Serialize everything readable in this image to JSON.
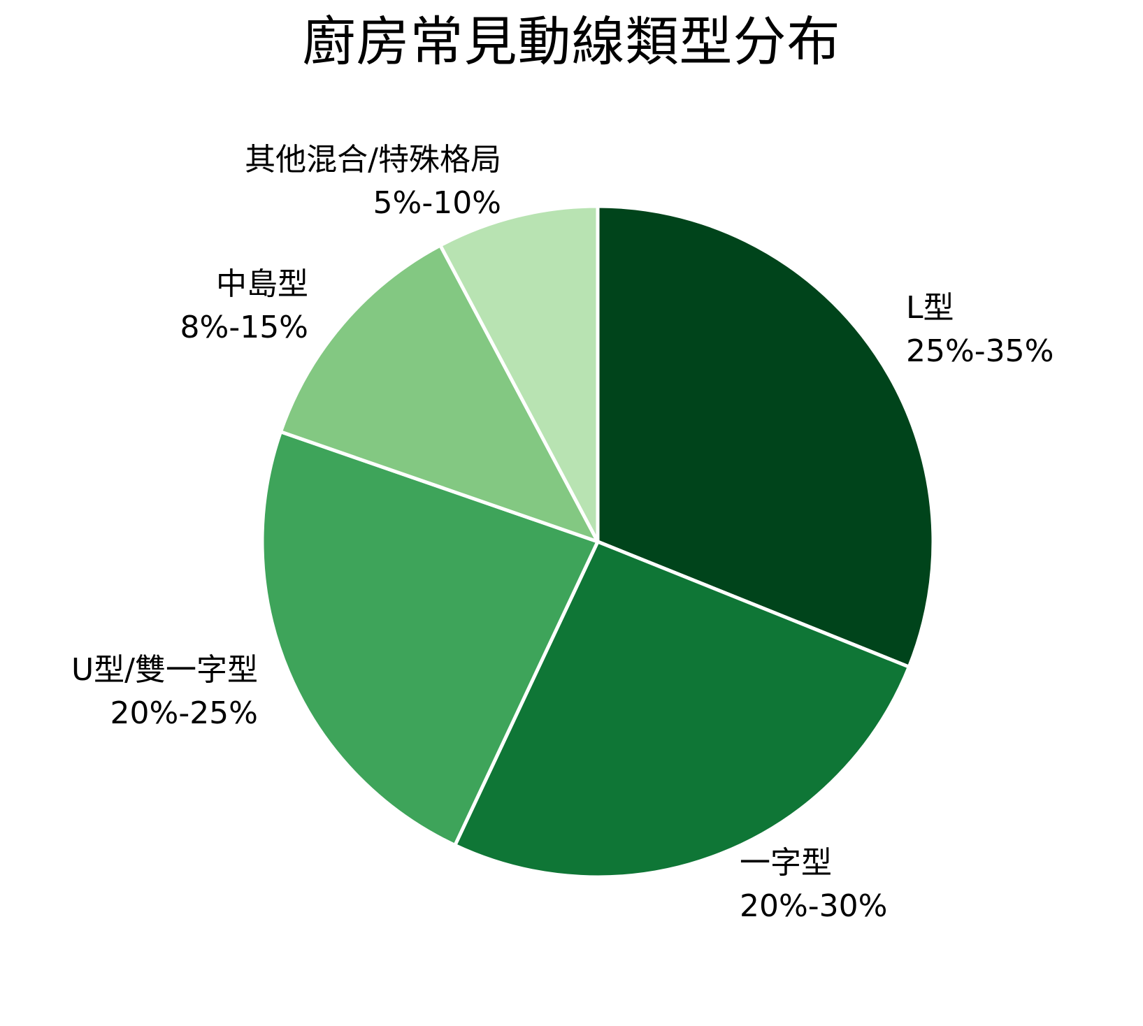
{
  "title": "廚房常見動線類型分布",
  "chart_data": {
    "type": "pie",
    "title": "廚房常見動線類型分布",
    "start_angle": "top, clockwise",
    "legend": "none (direct labels)",
    "slices": [
      {
        "name": "L型",
        "range_label": "25%-35%",
        "value": 30.0,
        "color": "#00441b"
      },
      {
        "name": "一字型",
        "range_label": "20%-30%",
        "value": 25.0,
        "color": "#0f7636"
      },
      {
        "name": "U型/雙一字型",
        "range_label": "20%-25%",
        "value": 22.5,
        "color": "#3ea45a"
      },
      {
        "name": "中島型",
        "range_label": "8%-15%",
        "value": 11.5,
        "color": "#83c882"
      },
      {
        "name": "其他混合/特殊格局",
        "range_label": "5%-10%",
        "value": 7.5,
        "color": "#b8e3b2"
      }
    ],
    "center": [
      855,
      775
    ],
    "radius": 480,
    "separator_color": "#ffffff"
  },
  "labels": {
    "l": {
      "name": "L型",
      "pct": "25%-35%"
    },
    "yizi": {
      "name": "一字型",
      "pct": "20%-30%"
    },
    "u": {
      "name": "U型/雙一字型",
      "pct": "20%-25%"
    },
    "island": {
      "name": "中島型",
      "pct": "8%-15%"
    },
    "other": {
      "name": "其他混合/特殊格局",
      "pct": "5%-10%"
    }
  }
}
